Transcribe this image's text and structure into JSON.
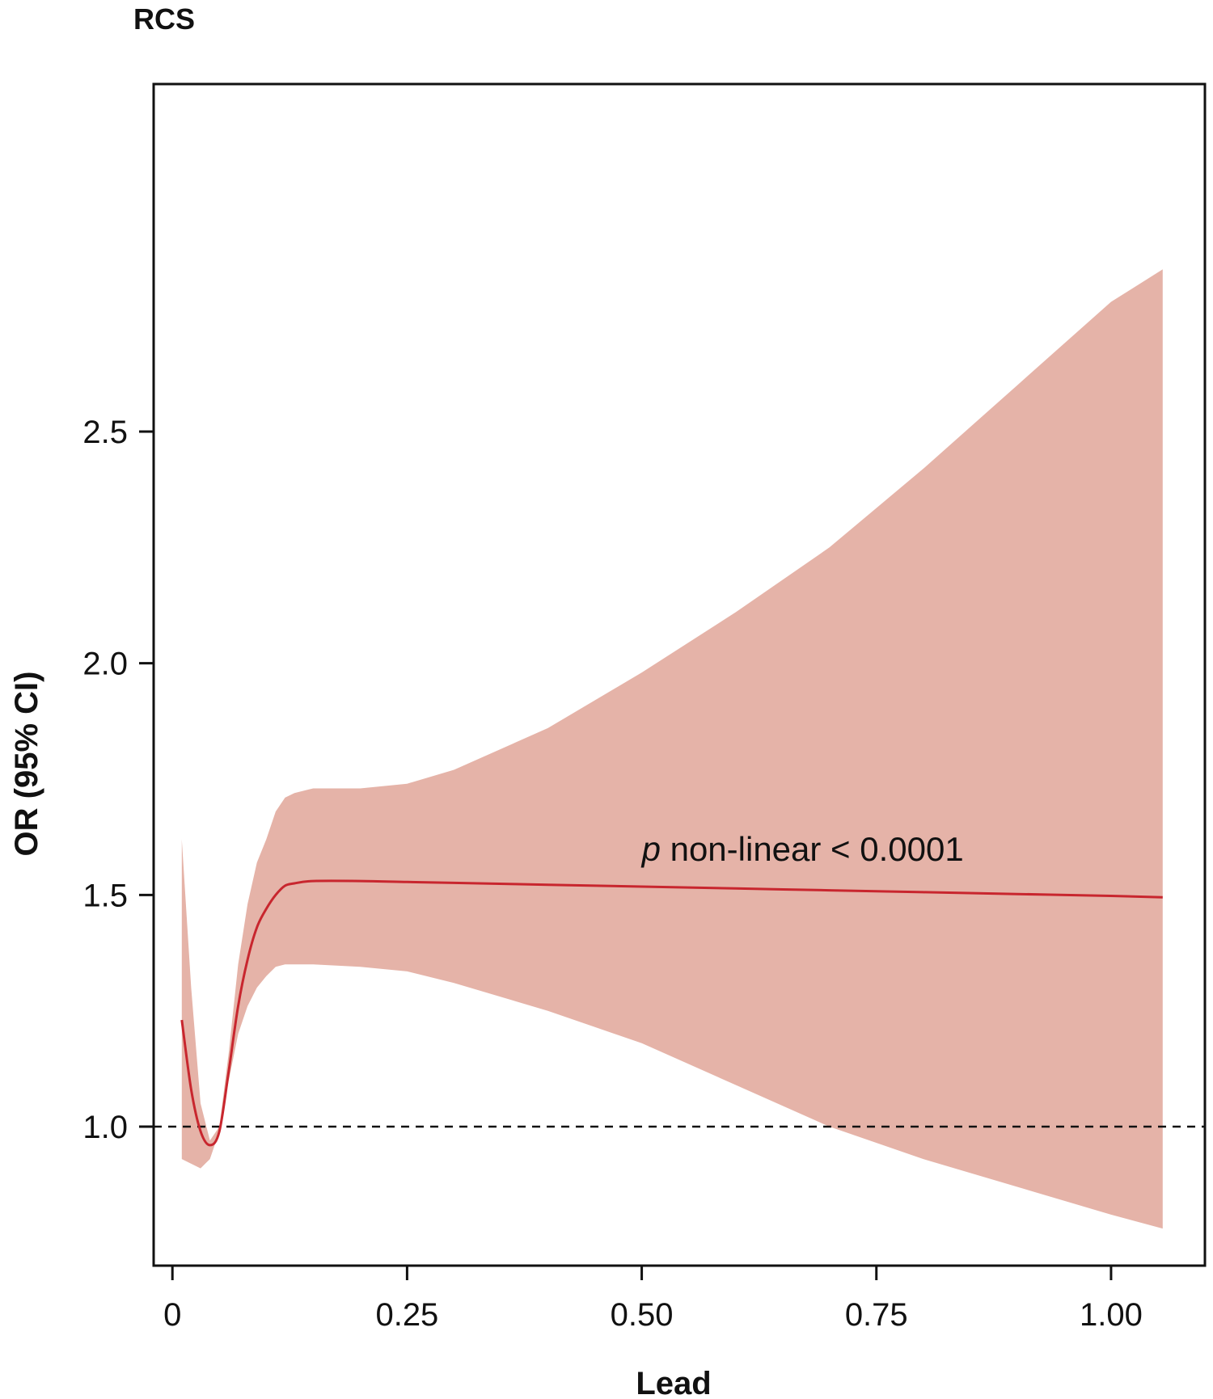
{
  "chart_data": {
    "type": "line",
    "title": "RCS",
    "xlabel": "Lead",
    "ylabel": "OR (95% CI)",
    "xlim": [
      -0.02,
      1.1
    ],
    "ylim": [
      0.7,
      3.25
    ],
    "x_ticks": [
      {
        "value": 0,
        "label": "0"
      },
      {
        "value": 0.25,
        "label": "0.25"
      },
      {
        "value": 0.5,
        "label": "0.50"
      },
      {
        "value": 0.75,
        "label": "0.75"
      },
      {
        "value": 1.0,
        "label": "1.00"
      }
    ],
    "y_ticks": [
      {
        "value": 1.0,
        "label": "1.0"
      },
      {
        "value": 1.5,
        "label": "1.5"
      },
      {
        "value": 2.0,
        "label": "2.0"
      },
      {
        "value": 2.5,
        "label": "2.5"
      }
    ],
    "reference_line": {
      "y": 1.0,
      "style": "dashed"
    },
    "annotation": {
      "prefix": "p",
      "text": " non-linear < 0.0001",
      "x": 0.5,
      "y": 1.6
    },
    "grid": false,
    "colors": {
      "line": "#c8262e",
      "band": "#e5b3a8",
      "axis": "#111111"
    },
    "series": [
      {
        "x": [
          0.01,
          0.02,
          0.03,
          0.04,
          0.05,
          0.06,
          0.07,
          0.08,
          0.09,
          0.1,
          0.11,
          0.12,
          0.13,
          0.15,
          0.2,
          0.25,
          0.3,
          0.4,
          0.5,
          0.6,
          0.7,
          0.8,
          0.9,
          1.0,
          1.055
        ],
        "y": [
          1.23,
          1.08,
          0.99,
          0.96,
          0.99,
          1.12,
          1.26,
          1.36,
          1.43,
          1.47,
          1.5,
          1.52,
          1.525,
          1.53,
          1.53,
          1.528,
          1.526,
          1.522,
          1.518,
          1.514,
          1.51,
          1.506,
          1.502,
          1.498,
          1.495
        ],
        "lower": [
          0.93,
          0.92,
          0.91,
          0.93,
          0.99,
          1.1,
          1.2,
          1.26,
          1.3,
          1.325,
          1.345,
          1.35,
          1.35,
          1.35,
          1.345,
          1.335,
          1.31,
          1.25,
          1.18,
          1.09,
          1.0,
          0.93,
          0.87,
          0.81,
          0.78
        ],
        "upper": [
          1.62,
          1.3,
          1.05,
          0.97,
          1.0,
          1.16,
          1.35,
          1.48,
          1.57,
          1.62,
          1.68,
          1.71,
          1.72,
          1.73,
          1.73,
          1.74,
          1.77,
          1.86,
          1.98,
          2.11,
          2.25,
          2.42,
          2.6,
          2.78,
          2.85
        ]
      }
    ]
  }
}
